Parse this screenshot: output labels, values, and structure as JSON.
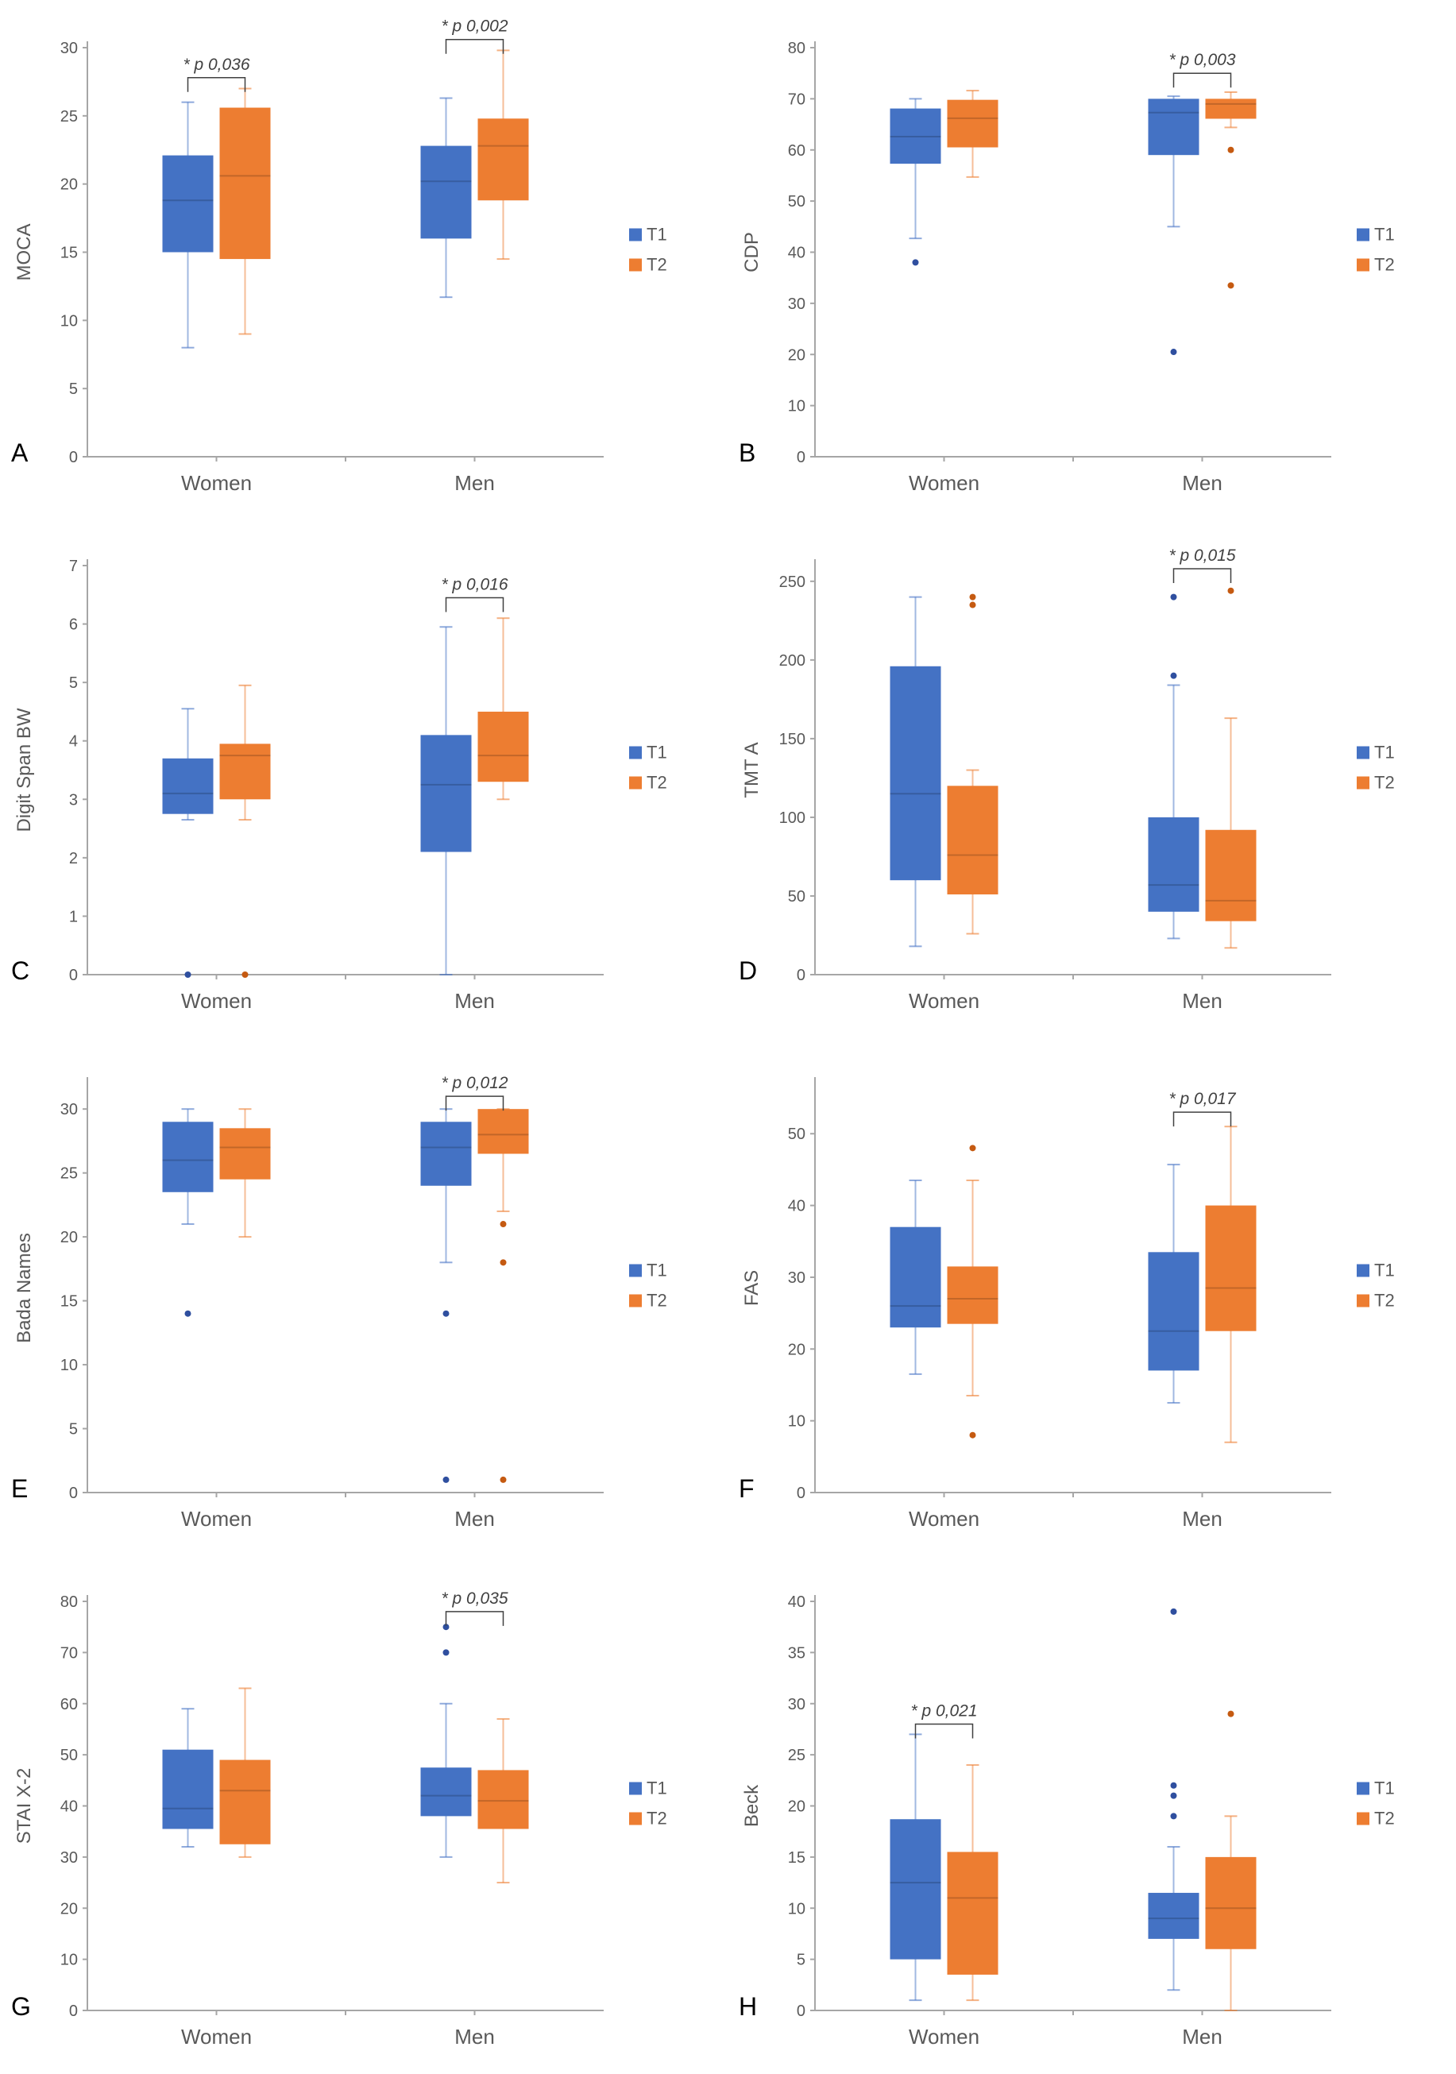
{
  "colors": {
    "T1": "#4472c4",
    "T2": "#ed7d31",
    "axis": "#a6a6a6",
    "text": "#595959"
  },
  "legend": [
    "T1",
    "T2"
  ],
  "chart_data": [
    {
      "panel": "A",
      "type": "box",
      "ylabel": "MOCA",
      "ylim": [
        0,
        30
      ],
      "yticks": [
        0,
        5,
        10,
        15,
        20,
        25,
        30
      ],
      "categories": [
        "Women",
        "Men"
      ],
      "series": [
        {
          "name": "T1",
          "boxes": [
            {
              "min": 8,
              "q1": 15,
              "median": 18.8,
              "q3": 22.1,
              "max": 26,
              "outliers": []
            },
            {
              "min": 11.7,
              "q1": 16,
              "median": 20.2,
              "q3": 22.8,
              "max": 26.3,
              "outliers": []
            }
          ]
        },
        {
          "name": "T2",
          "boxes": [
            {
              "min": 9,
              "q1": 14.5,
              "median": 20.6,
              "q3": 25.6,
              "max": 27,
              "outliers": []
            },
            {
              "min": 14.5,
              "q1": 18.8,
              "median": 22.8,
              "q3": 24.8,
              "max": 29.8,
              "outliers": []
            }
          ]
        }
      ],
      "annotations": [
        {
          "category": "Women",
          "text": "* p 0,036",
          "level": 27.8
        },
        {
          "category": "Men",
          "text": "* p 0,002",
          "level": 30.6
        }
      ]
    },
    {
      "panel": "B",
      "type": "box",
      "ylabel": "CDP",
      "ylim": [
        0,
        80
      ],
      "yticks": [
        0,
        10,
        20,
        30,
        40,
        50,
        60,
        70,
        80
      ],
      "categories": [
        "Women",
        "Men"
      ],
      "series": [
        {
          "name": "T1",
          "boxes": [
            {
              "min": 42.7,
              "q1": 57.3,
              "median": 62.6,
              "q3": 68.1,
              "max": 70,
              "outliers": [
                38
              ]
            },
            {
              "min": 45,
              "q1": 59,
              "median": 67.3,
              "q3": 70,
              "max": 70.5,
              "outliers": [
                20.5
              ]
            }
          ]
        },
        {
          "name": "T2",
          "boxes": [
            {
              "min": 54.7,
              "q1": 60.5,
              "median": 66.2,
              "q3": 69.8,
              "max": 71.6,
              "outliers": []
            },
            {
              "min": 64.4,
              "q1": 66.1,
              "median": 69,
              "q3": 70,
              "max": 71.3,
              "outliers": [
                60,
                33.5
              ]
            }
          ]
        }
      ],
      "annotations": [
        {
          "category": "Men",
          "text": "* p 0,003",
          "level": 75
        }
      ]
    },
    {
      "panel": "C",
      "type": "box",
      "ylabel": "Digit Span BW",
      "ylim": [
        0,
        7
      ],
      "yticks": [
        0,
        1,
        2,
        3,
        4,
        5,
        6,
        7
      ],
      "categories": [
        "Women",
        "Men"
      ],
      "series": [
        {
          "name": "T1",
          "boxes": [
            {
              "min": 2.65,
              "q1": 2.75,
              "median": 3.1,
              "q3": 3.7,
              "max": 4.55,
              "outliers": [
                0
              ]
            },
            {
              "min": 0,
              "q1": 2.1,
              "median": 3.25,
              "q3": 4.1,
              "max": 5.95,
              "outliers": []
            }
          ]
        },
        {
          "name": "T2",
          "boxes": [
            {
              "min": 2.65,
              "q1": 3.0,
              "median": 3.75,
              "q3": 3.95,
              "max": 4.95,
              "outliers": [
                0
              ]
            },
            {
              "min": 3.0,
              "q1": 3.3,
              "median": 3.75,
              "q3": 4.5,
              "max": 6.1,
              "outliers": []
            }
          ]
        }
      ],
      "annotations": [
        {
          "category": "Men",
          "text": "* p 0,016",
          "level": 6.45
        }
      ]
    },
    {
      "panel": "D",
      "type": "box",
      "ylabel": "TMT A",
      "ylim": [
        0,
        260
      ],
      "yticks": [
        0,
        50,
        100,
        150,
        200,
        250
      ],
      "categories": [
        "Women",
        "Men"
      ],
      "series": [
        {
          "name": "T1",
          "boxes": [
            {
              "min": 18,
              "q1": 60,
              "median": 115,
              "q3": 196,
              "max": 240,
              "outliers": []
            },
            {
              "min": 23,
              "q1": 40,
              "median": 57,
              "q3": 100,
              "max": 184,
              "outliers": [
                190,
                240
              ]
            }
          ]
        },
        {
          "name": "T2",
          "boxes": [
            {
              "min": 26,
              "q1": 51,
              "median": 76,
              "q3": 120,
              "max": 130,
              "outliers": [
                235,
                240
              ]
            },
            {
              "min": 17,
              "q1": 34,
              "median": 47,
              "q3": 92,
              "max": 163,
              "outliers": [
                244
              ]
            }
          ]
        }
      ],
      "annotations": [
        {
          "category": "Men",
          "text": "* p 0,015",
          "level": 258
        }
      ]
    },
    {
      "panel": "E",
      "type": "box",
      "ylabel": "Bada Names",
      "ylim": [
        0,
        32
      ],
      "yticks": [
        0,
        5,
        10,
        15,
        20,
        25,
        30
      ],
      "categories": [
        "Women",
        "Men"
      ],
      "series": [
        {
          "name": "T1",
          "boxes": [
            {
              "min": 21,
              "q1": 23.5,
              "median": 26,
              "q3": 29,
              "max": 30,
              "outliers": [
                14
              ]
            },
            {
              "min": 18,
              "q1": 24,
              "median": 27,
              "q3": 29,
              "max": 30,
              "outliers": [
                14,
                1
              ]
            }
          ]
        },
        {
          "name": "T2",
          "boxes": [
            {
              "min": 20,
              "q1": 24.5,
              "median": 27,
              "q3": 28.5,
              "max": 30,
              "outliers": []
            },
            {
              "min": 22,
              "q1": 26.5,
              "median": 28,
              "q3": 30,
              "max": 30,
              "outliers": [
                21,
                18,
                1
              ]
            }
          ]
        }
      ],
      "annotations": [
        {
          "category": "Men",
          "text": "* p 0,012",
          "level": 31
        }
      ]
    },
    {
      "panel": "F",
      "type": "box",
      "ylabel": "FAS",
      "ylim": [
        0,
        57
      ],
      "yticks": [
        0,
        10,
        20,
        30,
        40,
        50
      ],
      "categories": [
        "Women",
        "Men"
      ],
      "series": [
        {
          "name": "T1",
          "boxes": [
            {
              "min": 16.5,
              "q1": 23,
              "median": 26,
              "q3": 37,
              "max": 43.5,
              "outliers": []
            },
            {
              "min": 12.5,
              "q1": 17,
              "median": 22.5,
              "q3": 33.5,
              "max": 45.7,
              "outliers": []
            }
          ]
        },
        {
          "name": "T2",
          "boxes": [
            {
              "min": 13.5,
              "q1": 23.5,
              "median": 27,
              "q3": 31.5,
              "max": 43.5,
              "outliers": [
                48,
                8
              ]
            },
            {
              "min": 7,
              "q1": 22.5,
              "median": 28.5,
              "q3": 40,
              "max": 51,
              "outliers": []
            }
          ]
        }
      ],
      "annotations": [
        {
          "category": "Men",
          "text": "* p 0,017",
          "level": 53
        }
      ]
    },
    {
      "panel": "G",
      "type": "box",
      "ylabel": "STAI X-2",
      "ylim": [
        0,
        80
      ],
      "yticks": [
        0,
        10,
        20,
        30,
        40,
        50,
        60,
        70,
        80
      ],
      "categories": [
        "Women",
        "Men"
      ],
      "series": [
        {
          "name": "T1",
          "boxes": [
            {
              "min": 32,
              "q1": 35.5,
              "median": 39.5,
              "q3": 51,
              "max": 59,
              "outliers": []
            },
            {
              "min": 30,
              "q1": 38,
              "median": 42,
              "q3": 47.5,
              "max": 60,
              "outliers": [
                75,
                70
              ]
            }
          ]
        },
        {
          "name": "T2",
          "boxes": [
            {
              "min": 30,
              "q1": 32.5,
              "median": 43,
              "q3": 49,
              "max": 63,
              "outliers": []
            },
            {
              "min": 25,
              "q1": 35.5,
              "median": 41,
              "q3": 47,
              "max": 57,
              "outliers": []
            }
          ]
        }
      ],
      "annotations": [
        {
          "category": "Men",
          "text": "* p 0,035",
          "level": 78
        }
      ]
    },
    {
      "panel": "H",
      "type": "box",
      "ylabel": "Beck",
      "ylim": [
        0,
        40
      ],
      "yticks": [
        0,
        5,
        10,
        15,
        20,
        25,
        30,
        35,
        40
      ],
      "categories": [
        "Women",
        "Men"
      ],
      "series": [
        {
          "name": "T1",
          "boxes": [
            {
              "min": 1,
              "q1": 5,
              "median": 12.5,
              "q3": 18.7,
              "max": 27,
              "outliers": []
            },
            {
              "min": 2,
              "q1": 7,
              "median": 9,
              "q3": 11.5,
              "max": 16,
              "outliers": [
                39,
                22,
                21,
                19
              ]
            }
          ]
        },
        {
          "name": "T2",
          "boxes": [
            {
              "min": 1,
              "q1": 3.5,
              "median": 11,
              "q3": 15.5,
              "max": 24,
              "outliers": []
            },
            {
              "min": 0,
              "q1": 6,
              "median": 10,
              "q3": 15,
              "max": 19,
              "outliers": [
                29
              ]
            }
          ]
        }
      ],
      "annotations": [
        {
          "category": "Women",
          "text": "* p 0,021",
          "level": 28
        }
      ]
    }
  ]
}
